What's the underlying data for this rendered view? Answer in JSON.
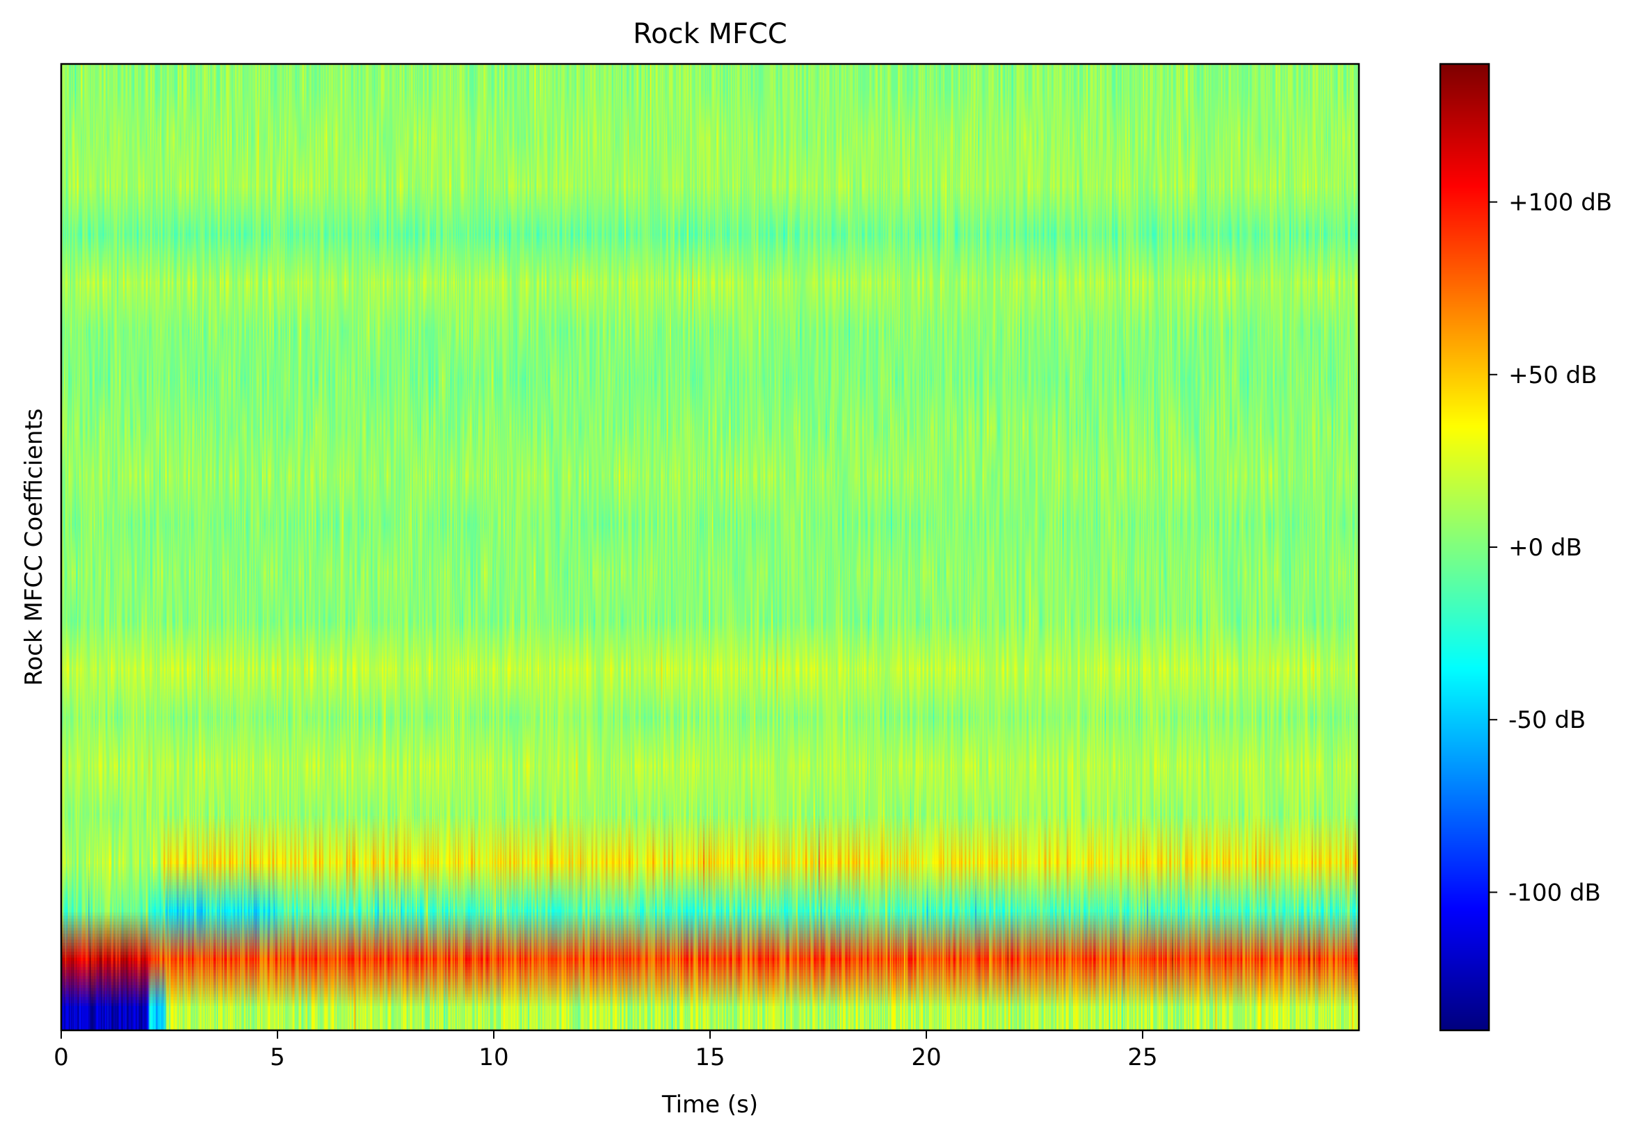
{
  "chart_data": {
    "type": "heatmap",
    "title": "Rock MFCC",
    "xlabel": "Time (s)",
    "ylabel": "Rock MFCC Coefficients",
    "x_range": [
      0,
      30
    ],
    "x_ticks": [
      0,
      5,
      10,
      15,
      20,
      25
    ],
    "x_tick_labels": [
      "0",
      "5",
      "10",
      "15",
      "20",
      "25"
    ],
    "n_coefficients": 20,
    "colormap": "jet",
    "colorbar": {
      "range": [
        -140,
        140
      ],
      "ticks": [
        100,
        50,
        0,
        -50,
        -100
      ],
      "tick_labels": [
        "+100 dB",
        "+50 dB",
        "+0 dB",
        "-50 dB",
        "-100 dB"
      ]
    },
    "grid": false,
    "coefficient_profiles_dB": [
      {
        "coefficient": 1,
        "typical": -15,
        "segments": [
          {
            "from": 0,
            "to": 2,
            "value": -120
          },
          {
            "from": 2,
            "to": 2.4,
            "value": -45
          },
          {
            "from": 2.4,
            "to": 30,
            "value": 15
          }
        ]
      },
      {
        "coefficient": 2,
        "typical": 85,
        "segments": [
          {
            "from": 0,
            "to": 2,
            "value": 110
          },
          {
            "from": 2,
            "to": 30,
            "value": 85
          }
        ]
      },
      {
        "coefficient": 3,
        "typical": -20,
        "segments": [
          {
            "from": 0,
            "to": 2,
            "value": -5
          },
          {
            "from": 2.4,
            "to": 5,
            "value": -35
          },
          {
            "from": 5,
            "to": 30,
            "value": -15
          }
        ]
      },
      {
        "coefficient": 4,
        "typical": 35,
        "segments": [
          {
            "from": 0,
            "to": 2.3,
            "value": 15
          },
          {
            "from": 2.3,
            "to": 30,
            "value": 38
          }
        ]
      },
      {
        "coefficient": 5,
        "typical": 8
      },
      {
        "coefficient": 6,
        "typical": 15
      },
      {
        "coefficient": 7,
        "typical": 5
      },
      {
        "coefficient": 8,
        "typical": 18
      },
      {
        "coefficient": 9,
        "typical": 3
      },
      {
        "coefficient": 10,
        "typical": 5
      },
      {
        "coefficient": 11,
        "typical": 2
      },
      {
        "coefficient": 12,
        "typical": 8
      },
      {
        "coefficient": 13,
        "typical": 4
      },
      {
        "coefficient": 14,
        "typical": 1
      },
      {
        "coefficient": 15,
        "typical": 3
      },
      {
        "coefficient": 16,
        "typical": 12
      },
      {
        "coefficient": 17,
        "typical": -5
      },
      {
        "coefficient": 18,
        "typical": 10
      },
      {
        "coefficient": 19,
        "typical": 8
      },
      {
        "coefficient": 20,
        "typical": 5
      }
    ]
  }
}
